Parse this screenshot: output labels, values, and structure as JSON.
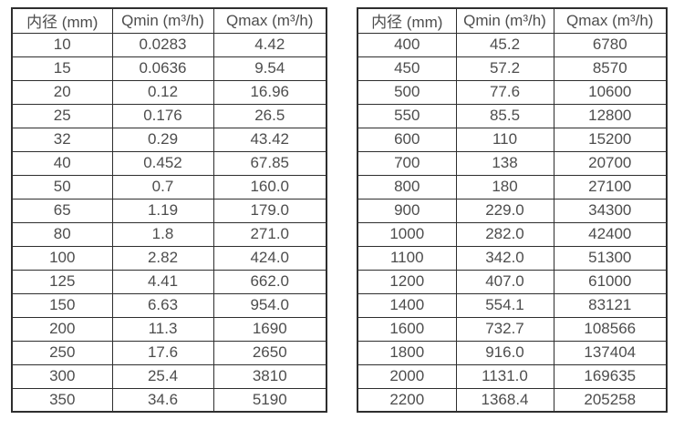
{
  "colors": {
    "background": "#ffffff",
    "border": "#2e2e2e",
    "text": "#4d4d4d"
  },
  "chart_data": [
    {
      "type": "table",
      "name": "flow-range-small-diameters",
      "headers": [
        "内径 (mm)",
        "Qmin (m³/h)",
        "Qmax (m³/h)"
      ],
      "rows": [
        [
          "10",
          "0.0283",
          "4.42"
        ],
        [
          "15",
          "0.0636",
          "9.54"
        ],
        [
          "20",
          "0.12",
          "16.96"
        ],
        [
          "25",
          "0.176",
          "26.5"
        ],
        [
          "32",
          "0.29",
          "43.42"
        ],
        [
          "40",
          "0.452",
          "67.85"
        ],
        [
          "50",
          "0.7",
          "160.0"
        ],
        [
          "65",
          "1.19",
          "179.0"
        ],
        [
          "80",
          "1.8",
          "271.0"
        ],
        [
          "100",
          "2.82",
          "424.0"
        ],
        [
          "125",
          "4.41",
          "662.0"
        ],
        [
          "150",
          "6.63",
          "954.0"
        ],
        [
          "200",
          "11.3",
          "1690"
        ],
        [
          "250",
          "17.6",
          "2650"
        ],
        [
          "300",
          "25.4",
          "3810"
        ],
        [
          "350",
          "34.6",
          "5190"
        ]
      ]
    },
    {
      "type": "table",
      "name": "flow-range-large-diameters",
      "headers": [
        "内径 (mm)",
        "Qmin (m³/h)",
        "Qmax (m³/h)"
      ],
      "rows": [
        [
          "400",
          "45.2",
          "6780"
        ],
        [
          "450",
          "57.2",
          "8570"
        ],
        [
          "500",
          "77.6",
          "10600"
        ],
        [
          "550",
          "85.5",
          "12800"
        ],
        [
          "600",
          "110",
          "15200"
        ],
        [
          "700",
          "138",
          "20700"
        ],
        [
          "800",
          "180",
          "27100"
        ],
        [
          "900",
          "229.0",
          "34300"
        ],
        [
          "1000",
          "282.0",
          "42400"
        ],
        [
          "1100",
          "342.0",
          "51300"
        ],
        [
          "1200",
          "407.0",
          "61000"
        ],
        [
          "1400",
          "554.1",
          "83121"
        ],
        [
          "1600",
          "732.7",
          "108566"
        ],
        [
          "1800",
          "916.0",
          "137404"
        ],
        [
          "2000",
          "1131.0",
          "169635"
        ],
        [
          "2200",
          "1368.4",
          "205258"
        ]
      ]
    }
  ]
}
